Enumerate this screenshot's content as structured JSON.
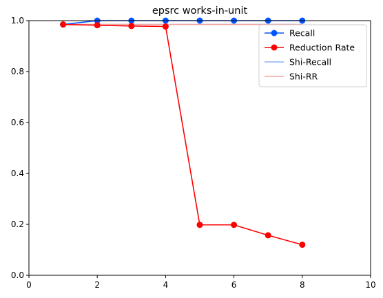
{
  "chart_data": {
    "type": "line",
    "title": "epsrc works-in-unit",
    "xlabel": "",
    "ylabel": "",
    "xlim": [
      0,
      10
    ],
    "ylim": [
      0,
      1
    ],
    "x_ticks": [
      0,
      2,
      4,
      6,
      8,
      10
    ],
    "y_ticks": [
      0.0,
      0.2,
      0.4,
      0.6,
      0.8,
      1.0
    ],
    "x_tick_labels": [
      "0",
      "2",
      "4",
      "6",
      "8",
      "10"
    ],
    "y_tick_labels": [
      "0.0",
      "0.2",
      "0.4",
      "0.6",
      "0.8",
      "1.0"
    ],
    "grid": false,
    "legend_position": "top-right",
    "series": [
      {
        "name": "Recall",
        "color": "#0055ff",
        "marker": "circle",
        "style": "solid",
        "x": [
          1,
          2,
          3,
          4,
          5,
          6,
          7,
          8
        ],
        "values": [
          0.985,
          1.0,
          1.0,
          1.0,
          1.0,
          1.0,
          1.0,
          1.0
        ]
      },
      {
        "name": "Reduction Rate",
        "color": "#ff0000",
        "marker": "circle",
        "style": "solid",
        "x": [
          1,
          2,
          3,
          4,
          5,
          6,
          7,
          8
        ],
        "values": [
          0.985,
          0.982,
          0.979,
          0.977,
          0.198,
          0.198,
          0.157,
          0.12
        ]
      },
      {
        "name": "Shi-Recall",
        "color": "#8ab4f8",
        "marker": "none",
        "style": "solid",
        "x": [
          1,
          8
        ],
        "values": [
          0.985,
          0.985
        ]
      },
      {
        "name": "Shi-RR",
        "color": "#f4a6a0",
        "marker": "none",
        "style": "solid",
        "x": [
          1,
          8
        ],
        "values": [
          0.985,
          0.985
        ]
      }
    ]
  }
}
